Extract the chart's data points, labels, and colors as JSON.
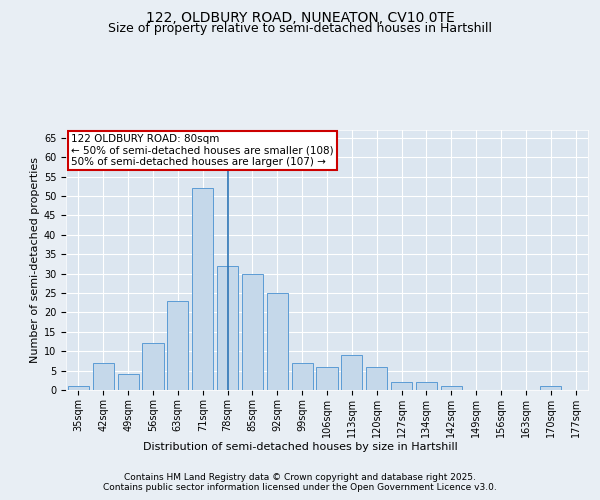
{
  "title1": "122, OLDBURY ROAD, NUNEATON, CV10 0TE",
  "title2": "Size of property relative to semi-detached houses in Hartshill",
  "xlabel": "Distribution of semi-detached houses by size in Hartshill",
  "ylabel": "Number of semi-detached properties",
  "categories": [
    "35sqm",
    "42sqm",
    "49sqm",
    "56sqm",
    "63sqm",
    "71sqm",
    "78sqm",
    "85sqm",
    "92sqm",
    "99sqm",
    "106sqm",
    "113sqm",
    "120sqm",
    "127sqm",
    "134sqm",
    "142sqm",
    "149sqm",
    "156sqm",
    "163sqm",
    "170sqm",
    "177sqm"
  ],
  "values": [
    1,
    7,
    4,
    12,
    23,
    52,
    32,
    30,
    25,
    7,
    6,
    9,
    6,
    2,
    2,
    1,
    0,
    0,
    0,
    1,
    0
  ],
  "bar_color": "#c5d8ea",
  "bar_edge_color": "#5b9bd5",
  "highlight_index": 6,
  "highlight_line_color": "#2e75b6",
  "annotation_text": "122 OLDBURY ROAD: 80sqm\n← 50% of semi-detached houses are smaller (108)\n50% of semi-detached houses are larger (107) →",
  "annotation_box_color": "#ffffff",
  "annotation_box_edge_color": "#cc0000",
  "ylim": [
    0,
    67
  ],
  "yticks": [
    0,
    5,
    10,
    15,
    20,
    25,
    30,
    35,
    40,
    45,
    50,
    55,
    60,
    65
  ],
  "background_color": "#e8eef4",
  "plot_background_color": "#dce6f0",
  "grid_color": "#ffffff",
  "footer_text": "Contains HM Land Registry data © Crown copyright and database right 2025.\nContains public sector information licensed under the Open Government Licence v3.0.",
  "title1_fontsize": 10,
  "title2_fontsize": 9,
  "axis_label_fontsize": 8,
  "tick_fontsize": 7,
  "annotation_fontsize": 7.5,
  "footer_fontsize": 6.5
}
